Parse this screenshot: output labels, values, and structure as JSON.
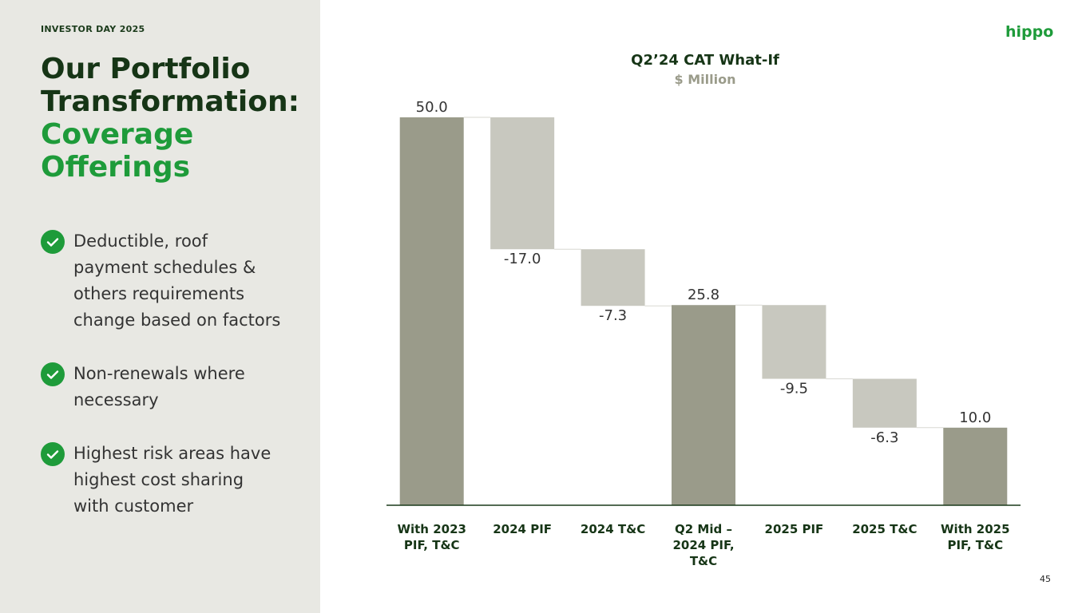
{
  "header": "INVESTOR DAY 2025",
  "title": [
    "Our Portfolio Transformation:",
    "Coverage Offerings"
  ],
  "bullets": [
    [
      "Deductible, roof",
      "payment schedules &",
      "others requirements",
      "change based on factors"
    ],
    [
      "Non-renewals where",
      "necessary"
    ],
    [
      "Highest risk areas have",
      "highest cost sharing",
      "with customer"
    ]
  ],
  "logo": "hippo",
  "page_number": "45",
  "chart_data": {
    "type": "waterfall",
    "title": "Q2’24 CAT What-If",
    "subtitle": "$ Million",
    "categories": [
      "With 2023 PIF, T&C",
      "2024 PIF",
      "2024 T&C",
      "Q2 Mid – 2024 PIF, T&C",
      "2025 PIF",
      "2025 T&C",
      "With 2025 PIF, T&C"
    ],
    "values": [
      50.0,
      -17.0,
      -7.3,
      25.8,
      -9.5,
      -6.3,
      10.0
    ],
    "value_labels": [
      "50.0",
      "-17.0",
      "-7.3",
      "25.8",
      "-9.5",
      "-6.3",
      "10.0"
    ],
    "totals": [
      true,
      false,
      false,
      true,
      false,
      false,
      true
    ],
    "total_color": "#9a9b8a",
    "change_color": "#c8c8bf",
    "ylim": [
      0,
      50
    ]
  }
}
